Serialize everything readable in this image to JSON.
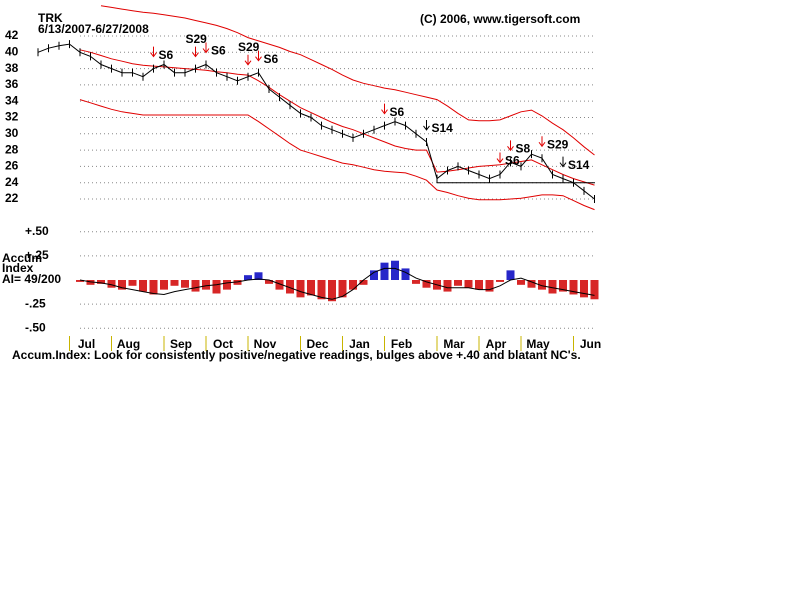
{
  "chart_data": {
    "type": "stock",
    "symbol": "TRK",
    "date_range": "6/13/2007-6/27/2008",
    "copyright": "(C) 2006, www.tigersoft.com",
    "categories": [
      null,
      null,
      null,
      "Jul",
      null,
      null,
      null,
      "Aug",
      null,
      null,
      null,
      null,
      "Sep",
      null,
      null,
      null,
      "Oct",
      null,
      null,
      null,
      "Nov",
      null,
      null,
      null,
      null,
      "Dec",
      null,
      null,
      null,
      "Jan",
      null,
      null,
      null,
      "Feb",
      null,
      null,
      null,
      null,
      "Mar",
      null,
      null,
      null,
      "Apr",
      null,
      null,
      null,
      "May",
      null,
      null,
      null,
      null,
      "Jun",
      null,
      null
    ],
    "month_tick_color": "#c8b400",
    "price_panel": {
      "ylim": [
        20.65,
        45.8
      ],
      "yticks": [
        22,
        24,
        26,
        28,
        30,
        32,
        34,
        36,
        38,
        40,
        42
      ],
      "grid": true,
      "close": {
        "color": "#000000",
        "values": [
          40,
          40.5,
          40.8,
          41,
          40,
          39.5,
          38.5,
          38,
          37.5,
          37.5,
          37,
          38,
          38.5,
          37.5,
          37.5,
          38,
          38.5,
          37.5,
          37,
          36.5,
          37,
          37.5,
          35.5,
          34.5,
          33.5,
          32.5,
          32,
          31,
          30.5,
          30,
          29.5,
          30,
          30.5,
          31,
          31.5,
          31,
          30,
          29,
          24.5,
          25.5,
          26,
          25.5,
          25,
          24.5,
          25,
          26.5,
          26,
          27.5,
          27,
          25,
          24.5,
          24,
          23,
          22
        ]
      },
      "bands": [
        {
          "color": "#e00000",
          "values": [
            null,
            null,
            null,
            null,
            null,
            null,
            45.7,
            45.5,
            45.3,
            45.1,
            44.9,
            44.8,
            44.6,
            44.4,
            44.2,
            43.9,
            43.6,
            43.3,
            42.9,
            42.4,
            41.8,
            41.4,
            41,
            40.6,
            40.1,
            39.7,
            39.1,
            38.5,
            37.9,
            37.2,
            36.6,
            36.2,
            35.9,
            35.6,
            35.4,
            35.1,
            34.8,
            34.5,
            34.2,
            33.4,
            32.5,
            31.7,
            31.6,
            31.6,
            31.7,
            32.2,
            32.7,
            32.9,
            32.2,
            31.3,
            30.5,
            29.5,
            28.4,
            27.4
          ]
        },
        {
          "color": "#e00000",
          "values": [
            null,
            null,
            null,
            null,
            40.3,
            40,
            39.6,
            39.2,
            38.9,
            38.6,
            38.4,
            38.3,
            38.2,
            38.1,
            38,
            37.9,
            37.8,
            37.6,
            37.5,
            37.3,
            37.2,
            36.5,
            35.7,
            34.8,
            34,
            33.2,
            32.6,
            32,
            31.4,
            30.9,
            30.5,
            30,
            29.5,
            29,
            28.5,
            28.2,
            28,
            28,
            25.3,
            25.4,
            25.6,
            25.8,
            26,
            26.1,
            26.2,
            26.4,
            26.6,
            26.8,
            26.2,
            25.6,
            25,
            24.5,
            24.1,
            23.7
          ]
        },
        {
          "color": "#e00000",
          "values": [
            null,
            null,
            null,
            null,
            34.2,
            33.8,
            33.4,
            33,
            32.7,
            32.5,
            32.3,
            32.3,
            32.3,
            32.3,
            32.3,
            32.3,
            32.3,
            32.3,
            32.3,
            32.3,
            32.3,
            31.5,
            30.6,
            29.7,
            28.8,
            28,
            27.6,
            27.2,
            26.8,
            26.4,
            26.2,
            25.9,
            25.6,
            25.4,
            25.3,
            25.2,
            24.8,
            24.3,
            23.1,
            22.8,
            22.4,
            22.1,
            21.9,
            21.9,
            21.9,
            22,
            22.1,
            22.3,
            22.5,
            22.5,
            22.4,
            21.8,
            21.2,
            20.7
          ]
        }
      ],
      "support": {
        "value": 24,
        "start": 38,
        "color": "#000000"
      },
      "signals": [
        {
          "label": "S6",
          "at": 11,
          "color": "#e00000"
        },
        {
          "label": "S29",
          "at": 15,
          "color": "#e00000"
        },
        {
          "label": "S6",
          "at": 16,
          "color": "#e00000"
        },
        {
          "label": "S29",
          "at": 20,
          "color": "#e00000"
        },
        {
          "label": "S6",
          "at": 21,
          "color": "#e00000"
        },
        {
          "label": "S6",
          "at": 33,
          "color": "#e00000"
        },
        {
          "label": "S14",
          "at": 37,
          "color": "#000000"
        },
        {
          "label": "S6",
          "at": 44,
          "color": "#e00000"
        },
        {
          "label": "S8",
          "at": 45,
          "color": "#e00000"
        },
        {
          "label": "S29",
          "at": 48,
          "color": "#e00000"
        },
        {
          "label": "S14",
          "at": 50,
          "color": "#000000"
        }
      ]
    },
    "accum_panel": {
      "title_lines": [
        "Accum",
        "Index"
      ],
      "ai": "AI= 49/200",
      "ylim": [
        -0.56,
        0.56
      ],
      "yticks": [
        {
          "value": 0.5,
          "label": "+.50"
        },
        {
          "value": 0.25,
          "label": "+.25"
        },
        {
          "value": -0.25,
          "label": "-.25"
        },
        {
          "value": -0.5,
          "label": "-.50"
        }
      ],
      "grid": true,
      "up_color": "#0000c0",
      "down_color": "#d00000",
      "values": [
        null,
        null,
        null,
        null,
        -0.02,
        -0.05,
        -0.04,
        -0.08,
        -0.1,
        -0.06,
        -0.12,
        -0.15,
        -0.1,
        -0.06,
        -0.08,
        -0.12,
        -0.1,
        -0.14,
        -0.1,
        -0.05,
        0.05,
        0.08,
        -0.04,
        -0.1,
        -0.14,
        -0.18,
        -0.16,
        -0.2,
        -0.22,
        -0.18,
        -0.1,
        -0.05,
        0.1,
        0.18,
        0.2,
        0.12,
        -0.04,
        -0.08,
        -0.1,
        -0.12,
        -0.06,
        -0.08,
        -0.1,
        -0.12,
        -0.02,
        0.1,
        -0.05,
        -0.08,
        -0.1,
        -0.14,
        -0.12,
        -0.15,
        -0.18,
        -0.2
      ],
      "average": {
        "color": "#000000",
        "values": [
          null,
          null,
          null,
          null,
          0,
          -0.02,
          -0.03,
          -0.05,
          -0.08,
          -0.1,
          -0.12,
          -0.14,
          -0.15,
          -0.12,
          -0.1,
          -0.08,
          -0.06,
          -0.05,
          -0.03,
          -0.02,
          0,
          0.01,
          0,
          -0.04,
          -0.08,
          -0.12,
          -0.15,
          -0.18,
          -0.2,
          -0.17,
          -0.1,
          0,
          0.08,
          0.12,
          0.12,
          0.08,
          0.02,
          -0.02,
          -0.05,
          -0.08,
          -0.08,
          -0.08,
          -0.1,
          -0.1,
          -0.06,
          0,
          0.02,
          -0.02,
          -0.06,
          -0.08,
          -0.1,
          -0.12,
          -0.14,
          -0.16
        ]
      },
      "note": "Accum.Index: Look for consistently positive/negative readings, bulges above +.40 and blatant NC's."
    }
  }
}
